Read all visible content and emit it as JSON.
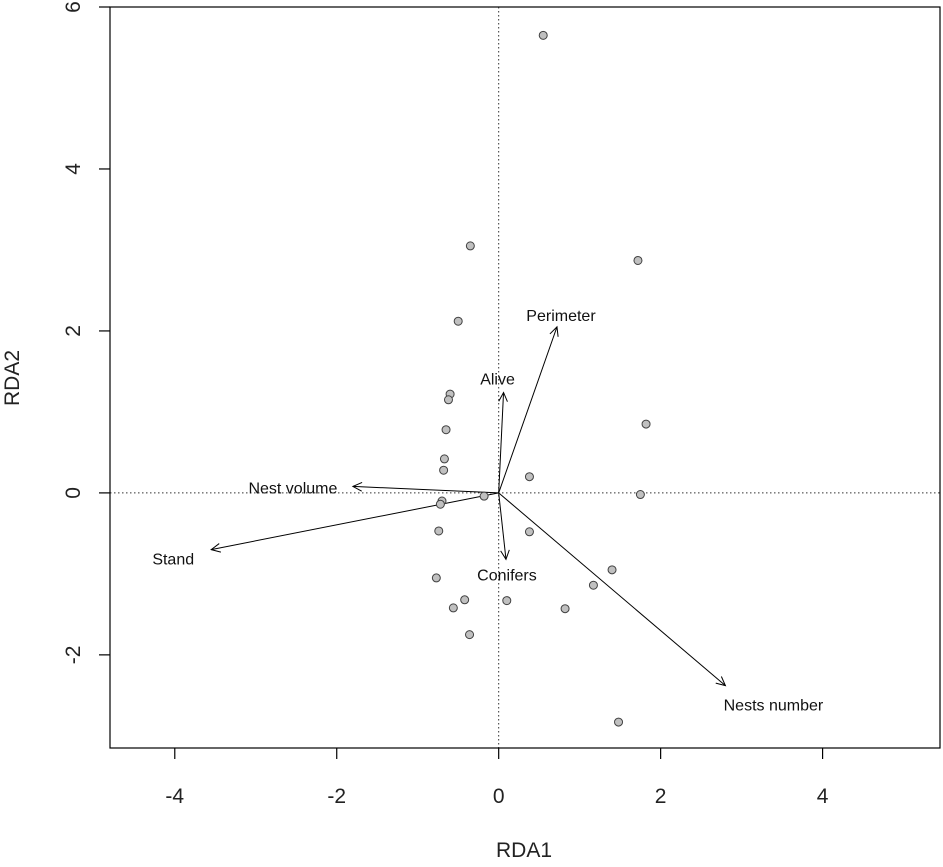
{
  "chart_data": {
    "type": "scatter",
    "title": "",
    "xlabel": "RDA1",
    "ylabel": "RDA2",
    "xlim": [
      -4.8,
      5.45
    ],
    "ylim": [
      -3.15,
      6.0
    ],
    "x_ticks": [
      -4,
      -2,
      0,
      2,
      4
    ],
    "y_ticks": [
      -2,
      0,
      2,
      4,
      6
    ],
    "x_tick_labels": [
      "-4",
      "-2",
      "0",
      "2",
      "4"
    ],
    "y_tick_labels": [
      "-2",
      "0",
      "2",
      "4",
      "6"
    ],
    "grid": false,
    "reference_lines": {
      "x": 0,
      "y": 0,
      "style": "dotted"
    },
    "points": [
      {
        "x": 0.55,
        "y": 5.65
      },
      {
        "x": -0.35,
        "y": 3.05
      },
      {
        "x": -0.5,
        "y": 2.12
      },
      {
        "x": -0.6,
        "y": 1.22
      },
      {
        "x": -0.62,
        "y": 1.15
      },
      {
        "x": -0.65,
        "y": 0.78
      },
      {
        "x": -0.67,
        "y": 0.42
      },
      {
        "x": -0.68,
        "y": 0.28
      },
      {
        "x": -0.7,
        "y": -0.1
      },
      {
        "x": -0.72,
        "y": -0.14
      },
      {
        "x": -0.18,
        "y": -0.04
      },
      {
        "x": 0.38,
        "y": 0.2
      },
      {
        "x": 0.38,
        "y": -0.48
      },
      {
        "x": -0.74,
        "y": -0.47
      },
      {
        "x": -0.77,
        "y": -1.05
      },
      {
        "x": -0.42,
        "y": -1.32
      },
      {
        "x": -0.56,
        "y": -1.42
      },
      {
        "x": -0.36,
        "y": -1.75
      },
      {
        "x": 0.1,
        "y": -1.33
      },
      {
        "x": 0.82,
        "y": -1.43
      },
      {
        "x": 1.17,
        "y": -1.14
      },
      {
        "x": 1.4,
        "y": -0.95
      },
      {
        "x": 1.72,
        "y": 2.87
      },
      {
        "x": 1.82,
        "y": 0.85
      },
      {
        "x": 1.75,
        "y": -0.02
      },
      {
        "x": 1.48,
        "y": -2.83
      }
    ],
    "vectors": [
      {
        "name": "Perimeter",
        "x": 0.72,
        "y": 2.05
      },
      {
        "name": "Alive",
        "x": 0.06,
        "y": 1.24
      },
      {
        "name": "Nest volume",
        "x": -1.8,
        "y": 0.08
      },
      {
        "name": "Stand",
        "x": -3.55,
        "y": -0.7
      },
      {
        "name": "Conifers",
        "x": 0.09,
        "y": -0.82
      },
      {
        "name": "Nests number",
        "x": 2.8,
        "y": -2.38
      }
    ],
    "colors": {
      "point_fill": "#c0c0c0",
      "point_stroke": "#404040",
      "axis": "#000000",
      "vector": "#000000",
      "reference_line": "#333333"
    }
  }
}
